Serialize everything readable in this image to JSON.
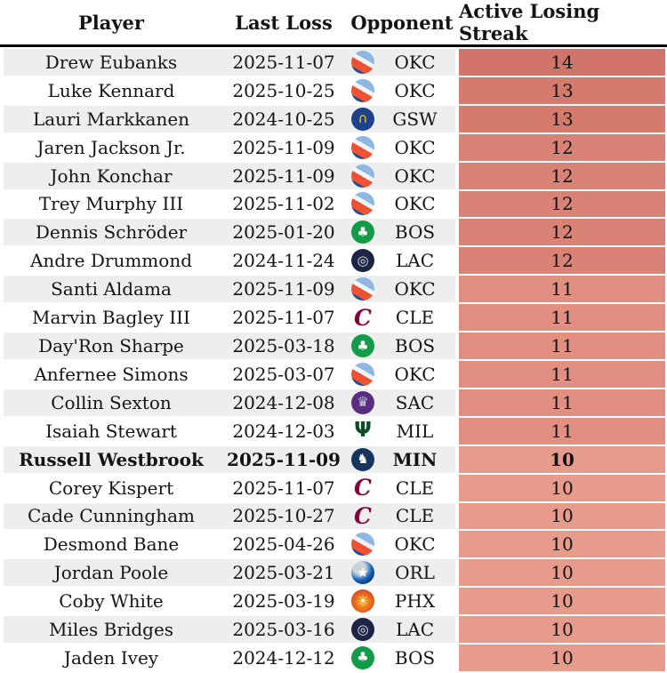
{
  "chart_data": {
    "type": "table",
    "columns": [
      "Player",
      "Last Loss",
      "Opponent",
      "Active Losing Streak"
    ],
    "rows": [
      {
        "player": "Drew Eubanks",
        "last_loss": "2025-11-07",
        "opponent": "OKC",
        "streak": 14,
        "bold": false
      },
      {
        "player": "Luke Kennard",
        "last_loss": "2025-10-25",
        "opponent": "OKC",
        "streak": 13,
        "bold": false
      },
      {
        "player": "Lauri Markkanen",
        "last_loss": "2024-10-25",
        "opponent": "GSW",
        "streak": 13,
        "bold": false
      },
      {
        "player": "Jaren Jackson Jr.",
        "last_loss": "2025-11-09",
        "opponent": "OKC",
        "streak": 12,
        "bold": false
      },
      {
        "player": "John Konchar",
        "last_loss": "2025-11-09",
        "opponent": "OKC",
        "streak": 12,
        "bold": false
      },
      {
        "player": "Trey Murphy III",
        "last_loss": "2025-11-02",
        "opponent": "OKC",
        "streak": 12,
        "bold": false
      },
      {
        "player": "Dennis Schröder",
        "last_loss": "2025-01-20",
        "opponent": "BOS",
        "streak": 12,
        "bold": false
      },
      {
        "player": "Andre Drummond",
        "last_loss": "2024-11-24",
        "opponent": "LAC",
        "streak": 12,
        "bold": false
      },
      {
        "player": "Santi Aldama",
        "last_loss": "2025-11-09",
        "opponent": "OKC",
        "streak": 11,
        "bold": false
      },
      {
        "player": "Marvin Bagley III",
        "last_loss": "2025-11-07",
        "opponent": "CLE",
        "streak": 11,
        "bold": false
      },
      {
        "player": "Day'Ron Sharpe",
        "last_loss": "2025-03-18",
        "opponent": "BOS",
        "streak": 11,
        "bold": false
      },
      {
        "player": "Anfernee Simons",
        "last_loss": "2025-03-07",
        "opponent": "OKC",
        "streak": 11,
        "bold": false
      },
      {
        "player": "Collin Sexton",
        "last_loss": "2024-12-08",
        "opponent": "SAC",
        "streak": 11,
        "bold": false
      },
      {
        "player": "Isaiah Stewart",
        "last_loss": "2024-12-03",
        "opponent": "MIL",
        "streak": 11,
        "bold": false
      },
      {
        "player": "Russell Westbrook",
        "last_loss": "2025-11-09",
        "opponent": "MIN",
        "streak": 10,
        "bold": true
      },
      {
        "player": "Corey Kispert",
        "last_loss": "2025-11-07",
        "opponent": "CLE",
        "streak": 10,
        "bold": false
      },
      {
        "player": "Cade Cunningham",
        "last_loss": "2025-10-27",
        "opponent": "CLE",
        "streak": 10,
        "bold": false
      },
      {
        "player": "Desmond Bane",
        "last_loss": "2025-04-26",
        "opponent": "OKC",
        "streak": 10,
        "bold": false
      },
      {
        "player": "Jordan Poole",
        "last_loss": "2025-03-21",
        "opponent": "ORL",
        "streak": 10,
        "bold": false
      },
      {
        "player": "Coby White",
        "last_loss": "2025-03-19",
        "opponent": "PHX",
        "streak": 10,
        "bold": false
      },
      {
        "player": "Miles Bridges",
        "last_loss": "2025-03-16",
        "opponent": "LAC",
        "streak": 10,
        "bold": false
      },
      {
        "player": "Jaden Ivey",
        "last_loss": "2024-12-12",
        "opponent": "BOS",
        "streak": 10,
        "bold": false
      }
    ],
    "highlighted_row": "Russell Westbrook",
    "value_range": [
      10,
      14
    ],
    "layout_hints": "streak column heat-shaded: darker red for longer streaks; rows alternate gray/white"
  },
  "teams": {
    "OKC": {
      "logo_name": "okc-thunder-logo",
      "shape": "circle",
      "bg": "linear-gradient(210deg,#8fb7e4 0%,#8fb7e4 38%,#f0f4f8 38%,#f0f4f8 52%,#ef5133 52%,#ef5133 78%,#1d4f91 78%)",
      "glyph": "",
      "glyph_color": "#ffffff"
    },
    "GSW": {
      "logo_name": "golden-state-warriors-logo",
      "shape": "circle",
      "bg": "#1d428a",
      "glyph": "∩",
      "glyph_color": "#ffc72c"
    },
    "BOS": {
      "logo_name": "boston-celtics-logo",
      "shape": "circle",
      "bg": "#149b47",
      "glyph": "♣",
      "glyph_color": "#ffffff"
    },
    "LAC": {
      "logo_name": "la-clippers-logo",
      "shape": "circle",
      "bg": "#1d2445",
      "glyph": "◎",
      "glyph_color": "#e3e8ee"
    },
    "CLE": {
      "logo_name": "cleveland-cavaliers-logo",
      "shape": "flat",
      "bg": "none",
      "glyph": "C",
      "glyph_color": "#860038",
      "flat_style": "serif-italic"
    },
    "SAC": {
      "logo_name": "sacramento-kings-logo",
      "shape": "circle",
      "bg": "#5a2d81",
      "glyph": "♛",
      "glyph_color": "#c4ced4"
    },
    "MIL": {
      "logo_name": "milwaukee-bucks-logo",
      "shape": "flat",
      "bg": "none",
      "glyph": "Ψ",
      "glyph_color": "#0b4c27"
    },
    "MIN": {
      "logo_name": "minnesota-timberwolves-logo",
      "shape": "circle",
      "bg": "#16355c",
      "glyph": "♞",
      "glyph_color": "#ffffff"
    },
    "ORL": {
      "logo_name": "orlando-magic-logo",
      "shape": "circle",
      "bg": "radial-gradient(circle at 35% 30%,#ccd4da 0%,#ccd4da 28%,#1565c0 55%,#0b0b16 100%)",
      "glyph": "★",
      "glyph_color": "#ffffff"
    },
    "PHX": {
      "logo_name": "phoenix-suns-logo",
      "shape": "circle",
      "bg": "radial-gradient(circle at 50% 55%,#ffb11b 0%,#e56020 55%,#b62f0d 100%)",
      "glyph": "☀",
      "glyph_color": "#fff3cf"
    }
  },
  "colors": {
    "row_alt": "#eeeeee",
    "row_base": "#ffffff",
    "header_border": "#000000",
    "text": "#141414",
    "streak_scale": {
      "14": "#d1746a",
      "13": "#d47b6e",
      "12": "#d98377",
      "11": "#e08f81",
      "10": "#e69b8d"
    }
  }
}
